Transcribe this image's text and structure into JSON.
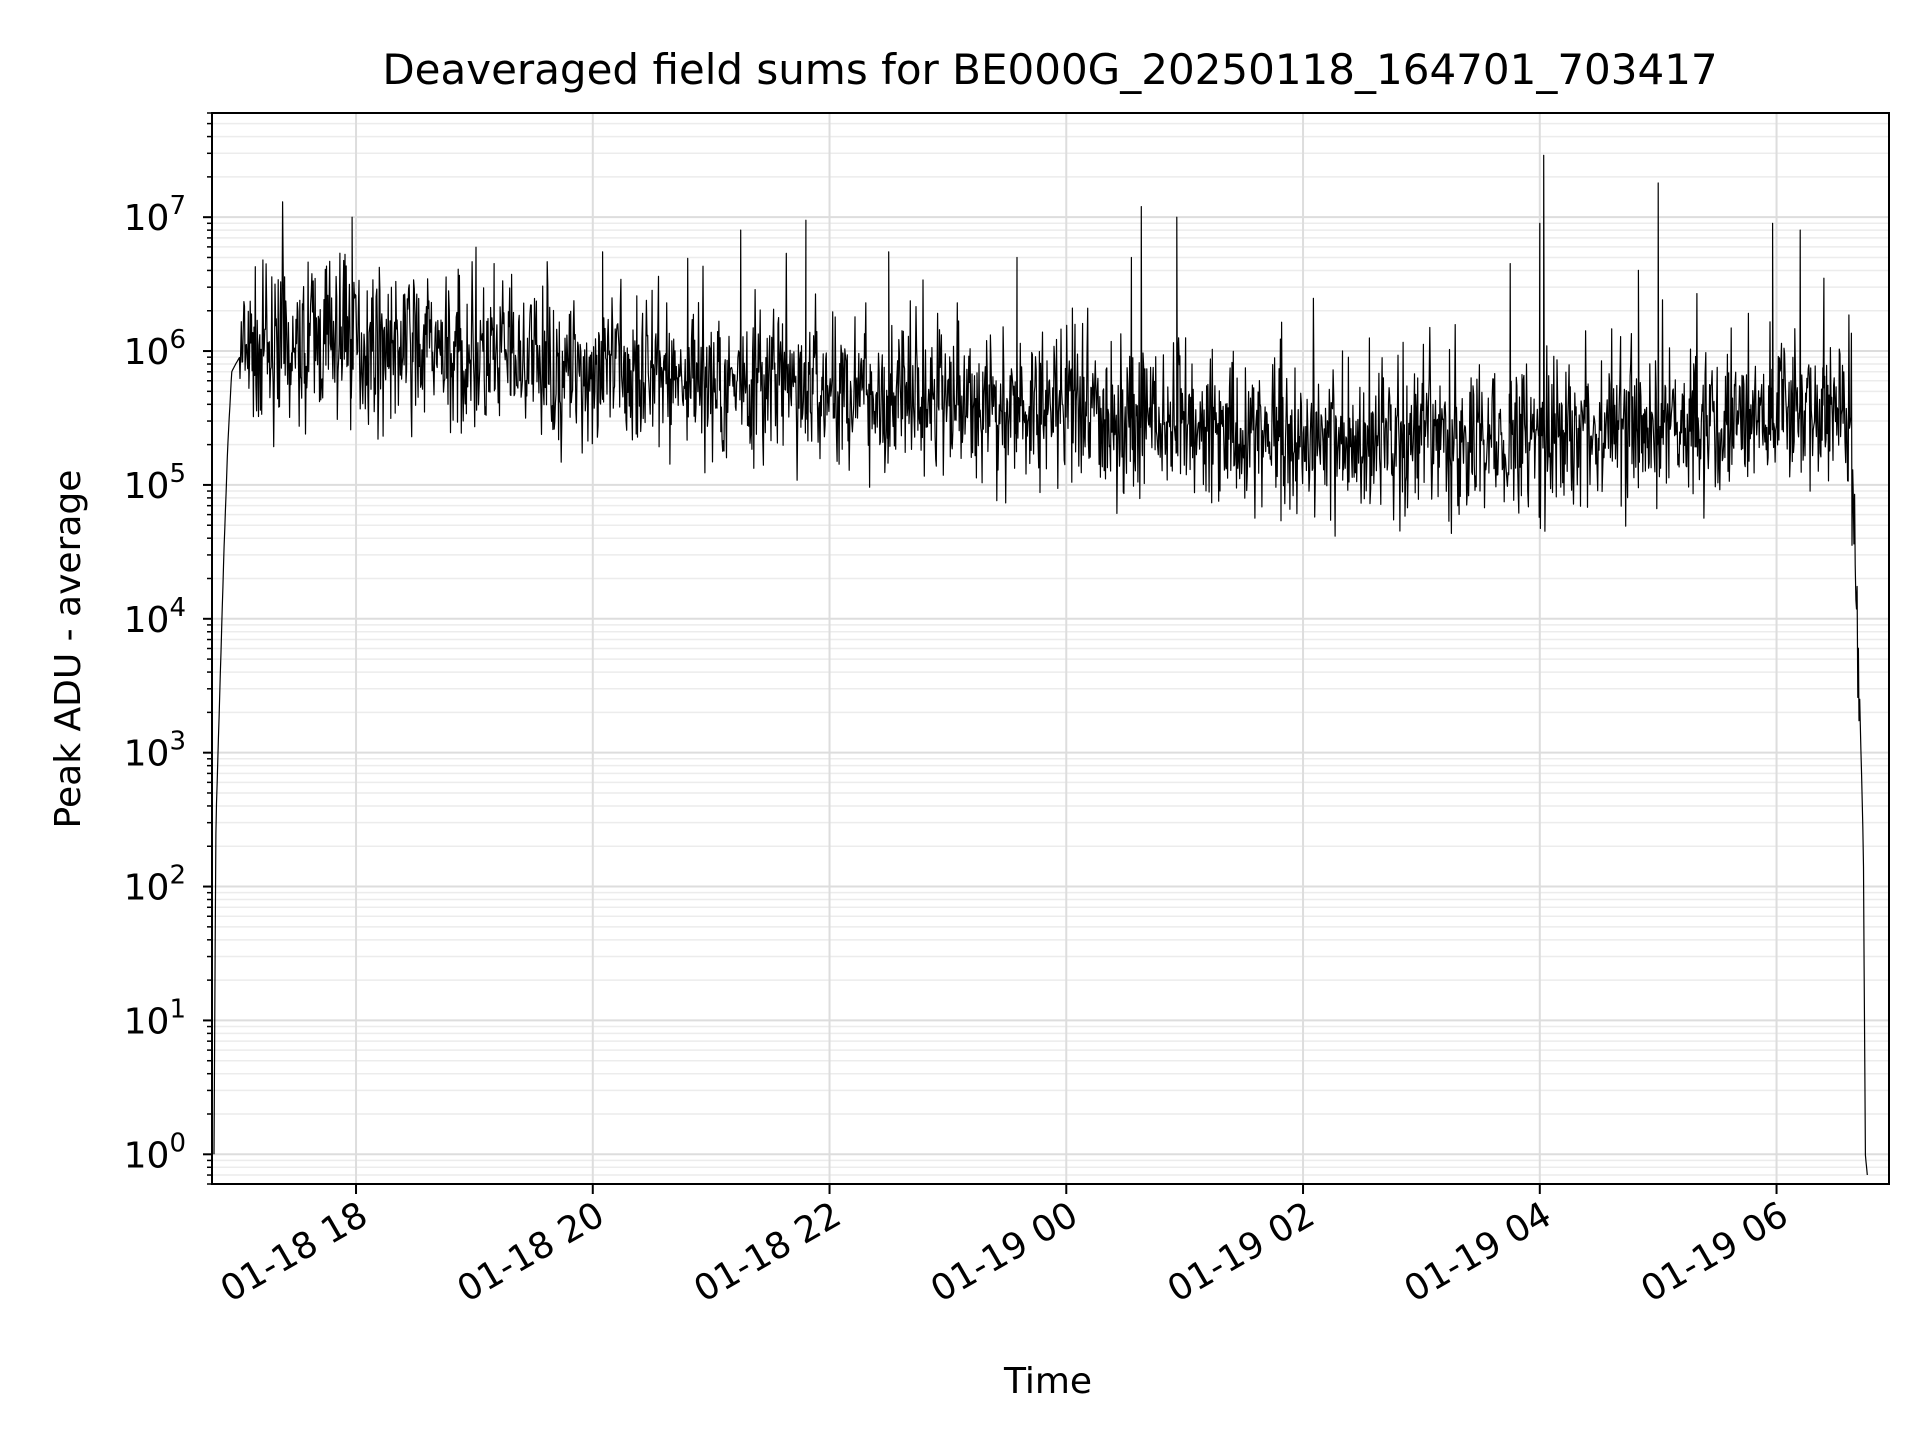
{
  "chart_data": {
    "type": "line",
    "title": "Deaveraged field sums for BE000G_20250118_164701_703417",
    "xlabel": "Time",
    "ylabel": "Peak ADU - average",
    "yscale": "log",
    "grid": true,
    "grid_minor": true,
    "legend": "none",
    "line_color": "#000000",
    "xlim": [
      "2025-01-18 16:47",
      "2025-01-19 06:57"
    ],
    "ylim": [
      0.6,
      60000000
    ],
    "x_ticks": [
      {
        "value": "2025-01-18 18:00",
        "label": "01-18 18"
      },
      {
        "value": "2025-01-18 20:00",
        "label": "01-18 20"
      },
      {
        "value": "2025-01-18 22:00",
        "label": "01-18 22"
      },
      {
        "value": "2025-01-19 00:00",
        "label": "01-19 00"
      },
      {
        "value": "2025-01-19 02:00",
        "label": "01-19 02"
      },
      {
        "value": "2025-01-19 04:00",
        "label": "01-19 04"
      },
      {
        "value": "2025-01-19 06:00",
        "label": "01-19 06"
      }
    ],
    "y_ticks": [
      {
        "value": 1,
        "base": "10",
        "exp": "0"
      },
      {
        "value": 10,
        "base": "10",
        "exp": "1"
      },
      {
        "value": 100,
        "base": "10",
        "exp": "2"
      },
      {
        "value": 1000,
        "base": "10",
        "exp": "3"
      },
      {
        "value": 10000,
        "base": "10",
        "exp": "4"
      },
      {
        "value": 100000,
        "base": "10",
        "exp": "5"
      },
      {
        "value": 1000000,
        "base": "10",
        "exp": "6"
      },
      {
        "value": 10000000,
        "base": "10",
        "exp": "7"
      }
    ],
    "series": [
      {
        "x": [
          "2025-01-18 16:48",
          "2025-01-18 16:49",
          "2025-01-18 16:51",
          "2025-01-18 16:53",
          "2025-01-18 16:55",
          "2025-01-18 16:57",
          "2025-01-18 16:59",
          "2025-01-18 17:01",
          "2025-01-18 17:04",
          "2025-01-18 17:10",
          "2025-01-18 17:20",
          "2025-01-18 17:30",
          "2025-01-18 17:40",
          "2025-01-18 17:50",
          "2025-01-18 18:00",
          "2025-01-18 18:15",
          "2025-01-18 18:30",
          "2025-01-18 18:45",
          "2025-01-18 19:00",
          "2025-01-18 19:15",
          "2025-01-18 19:30",
          "2025-01-18 19:45",
          "2025-01-18 20:00",
          "2025-01-18 20:15",
          "2025-01-18 20:30",
          "2025-01-18 20:45",
          "2025-01-18 21:00",
          "2025-01-18 21:15",
          "2025-01-18 21:30",
          "2025-01-18 21:45",
          "2025-01-18 22:00",
          "2025-01-18 22:15",
          "2025-01-18 22:30",
          "2025-01-18 22:45",
          "2025-01-18 23:00",
          "2025-01-18 23:15",
          "2025-01-18 23:30",
          "2025-01-18 23:45",
          "2025-01-19 00:00",
          "2025-01-19 00:15",
          "2025-01-19 00:30",
          "2025-01-19 00:45",
          "2025-01-19 01:00",
          "2025-01-19 01:15",
          "2025-01-19 01:30",
          "2025-01-19 01:45",
          "2025-01-19 02:00",
          "2025-01-19 02:15",
          "2025-01-19 02:30",
          "2025-01-19 02:45",
          "2025-01-19 03:00",
          "2025-01-19 03:15",
          "2025-01-19 03:30",
          "2025-01-19 03:45",
          "2025-01-19 04:00",
          "2025-01-19 04:15",
          "2025-01-19 04:30",
          "2025-01-19 04:45",
          "2025-01-19 05:00",
          "2025-01-19 05:15",
          "2025-01-19 05:30",
          "2025-01-19 05:45",
          "2025-01-19 06:00",
          "2025-01-19 06:15",
          "2025-01-19 06:25",
          "2025-01-19 06:33",
          "2025-01-19 06:38",
          "2025-01-19 06:42",
          "2025-01-19 06:44",
          "2025-01-19 06:45",
          "2025-01-19 06:46"
        ],
        "y": [
          1,
          300,
          3000,
          30000,
          200000,
          700000,
          800000,
          900000,
          900000,
          1000000,
          1000000,
          1100000,
          1200000,
          1300000,
          1200000,
          1100000,
          1000000,
          900000,
          900000,
          850000,
          800000,
          750000,
          700000,
          680000,
          650000,
          600000,
          600000,
          580000,
          550000,
          520000,
          500000,
          480000,
          460000,
          440000,
          420000,
          400000,
          380000,
          360000,
          350000,
          330000,
          310000,
          290000,
          270000,
          250000,
          240000,
          230000,
          220000,
          220000,
          210000,
          210000,
          200000,
          200000,
          210000,
          220000,
          250000,
          240000,
          230000,
          240000,
          260000,
          270000,
          280000,
          300000,
          320000,
          350000,
          400000,
          500000,
          150000,
          3000,
          200,
          1,
          0.7
        ],
        "spikes": [
          {
            "x": "2025-01-18 17:58",
            "y": 10000000
          },
          {
            "x": "2025-01-18 19:10",
            "y": 4500000
          },
          {
            "x": "2025-01-18 20:05",
            "y": 5500000
          },
          {
            "x": "2025-01-18 21:15",
            "y": 8000000
          },
          {
            "x": "2025-01-18 21:48",
            "y": 9500000
          },
          {
            "x": "2025-01-18 22:30",
            "y": 5500000
          },
          {
            "x": "2025-01-18 23:35",
            "y": 5000000
          },
          {
            "x": "2025-01-19 00:33",
            "y": 5000000
          },
          {
            "x": "2025-01-19 00:38",
            "y": 12000000
          },
          {
            "x": "2025-01-19 00:56",
            "y": 10000000
          },
          {
            "x": "2025-01-19 02:20",
            "y": 1000000
          },
          {
            "x": "2025-01-19 03:45",
            "y": 4500000
          },
          {
            "x": "2025-01-19 04:00",
            "y": 9000000
          },
          {
            "x": "2025-01-19 04:02",
            "y": 29000000
          },
          {
            "x": "2025-01-19 04:50",
            "y": 4000000
          },
          {
            "x": "2025-01-19 05:00",
            "y": 18000000
          },
          {
            "x": "2025-01-19 05:58",
            "y": 9000000
          },
          {
            "x": "2025-01-19 06:12",
            "y": 8000000
          },
          {
            "x": "2025-01-19 06:24",
            "y": 3500000
          }
        ]
      }
    ]
  }
}
